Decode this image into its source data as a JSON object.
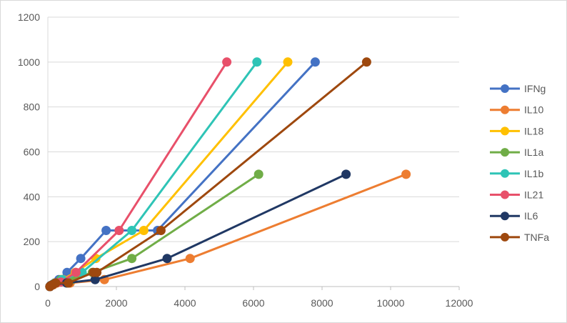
{
  "chart_data": {
    "type": "scatter",
    "title": "",
    "xlabel": "",
    "ylabel": "",
    "xlim": [
      0,
      12000
    ],
    "ylim": [
      0,
      1200
    ],
    "x_ticks": [
      0,
      2000,
      4000,
      6000,
      8000,
      10000,
      12000
    ],
    "y_ticks": [
      0,
      200,
      400,
      600,
      800,
      1000,
      1200
    ],
    "grid": "horizontal",
    "legend_position": "right",
    "series": [
      {
        "name": "IFNg",
        "color": "#4472C4",
        "points": [
          [
            60,
            0
          ],
          [
            80,
            4
          ],
          [
            130,
            8
          ],
          [
            200,
            16
          ],
          [
            320,
            31
          ],
          [
            560,
            63
          ],
          [
            960,
            125
          ],
          [
            1700,
            250
          ],
          [
            3200,
            250
          ],
          [
            7800,
            1000
          ]
        ]
      },
      {
        "name": "IL10",
        "color": "#ED7D31",
        "points": [
          [
            60,
            0
          ],
          [
            90,
            4
          ],
          [
            150,
            8
          ],
          [
            250,
            16
          ],
          [
            450,
            31
          ],
          [
            650,
            16
          ],
          [
            1650,
            31
          ],
          [
            4150,
            125
          ],
          [
            10450,
            500
          ]
        ]
      },
      {
        "name": "IL18",
        "color": "#FFC000",
        "points": [
          [
            60,
            0
          ],
          [
            90,
            4
          ],
          [
            160,
            8
          ],
          [
            260,
            16
          ],
          [
            420,
            31
          ],
          [
            800,
            63
          ],
          [
            1400,
            125
          ],
          [
            2800,
            250
          ],
          [
            7000,
            1000
          ]
        ]
      },
      {
        "name": "IL1a",
        "color": "#70AD47",
        "points": [
          [
            60,
            0
          ],
          [
            80,
            4
          ],
          [
            130,
            8
          ],
          [
            210,
            16
          ],
          [
            380,
            31
          ],
          [
            700,
            31
          ],
          [
            1300,
            63
          ],
          [
            2450,
            125
          ],
          [
            6150,
            500
          ]
        ]
      },
      {
        "name": "IL1b",
        "color": "#2EC4B6",
        "points": [
          [
            60,
            0
          ],
          [
            90,
            4
          ],
          [
            150,
            8
          ],
          [
            240,
            16
          ],
          [
            420,
            31
          ],
          [
            1000,
            63
          ],
          [
            2450,
            250
          ],
          [
            6100,
            1000
          ]
        ]
      },
      {
        "name": "IL21",
        "color": "#E8506A",
        "points": [
          [
            60,
            0
          ],
          [
            90,
            4
          ],
          [
            150,
            8
          ],
          [
            250,
            16
          ],
          [
            380,
            20
          ],
          [
            820,
            63
          ],
          [
            2080,
            250
          ],
          [
            5220,
            1000
          ]
        ]
      },
      {
        "name": "IL6",
        "color": "#203864",
        "points": [
          [
            60,
            0
          ],
          [
            80,
            4
          ],
          [
            130,
            8
          ],
          [
            550,
            16
          ],
          [
            1380,
            31
          ],
          [
            3480,
            125
          ],
          [
            8700,
            500
          ]
        ]
      },
      {
        "name": "TNFa",
        "color": "#9E480E",
        "points": [
          [
            60,
            0
          ],
          [
            90,
            4
          ],
          [
            140,
            8
          ],
          [
            230,
            16
          ],
          [
            600,
            16
          ],
          [
            1330,
            63
          ],
          [
            1430,
            63
          ],
          [
            3300,
            250
          ],
          [
            9300,
            1000
          ]
        ]
      }
    ]
  }
}
